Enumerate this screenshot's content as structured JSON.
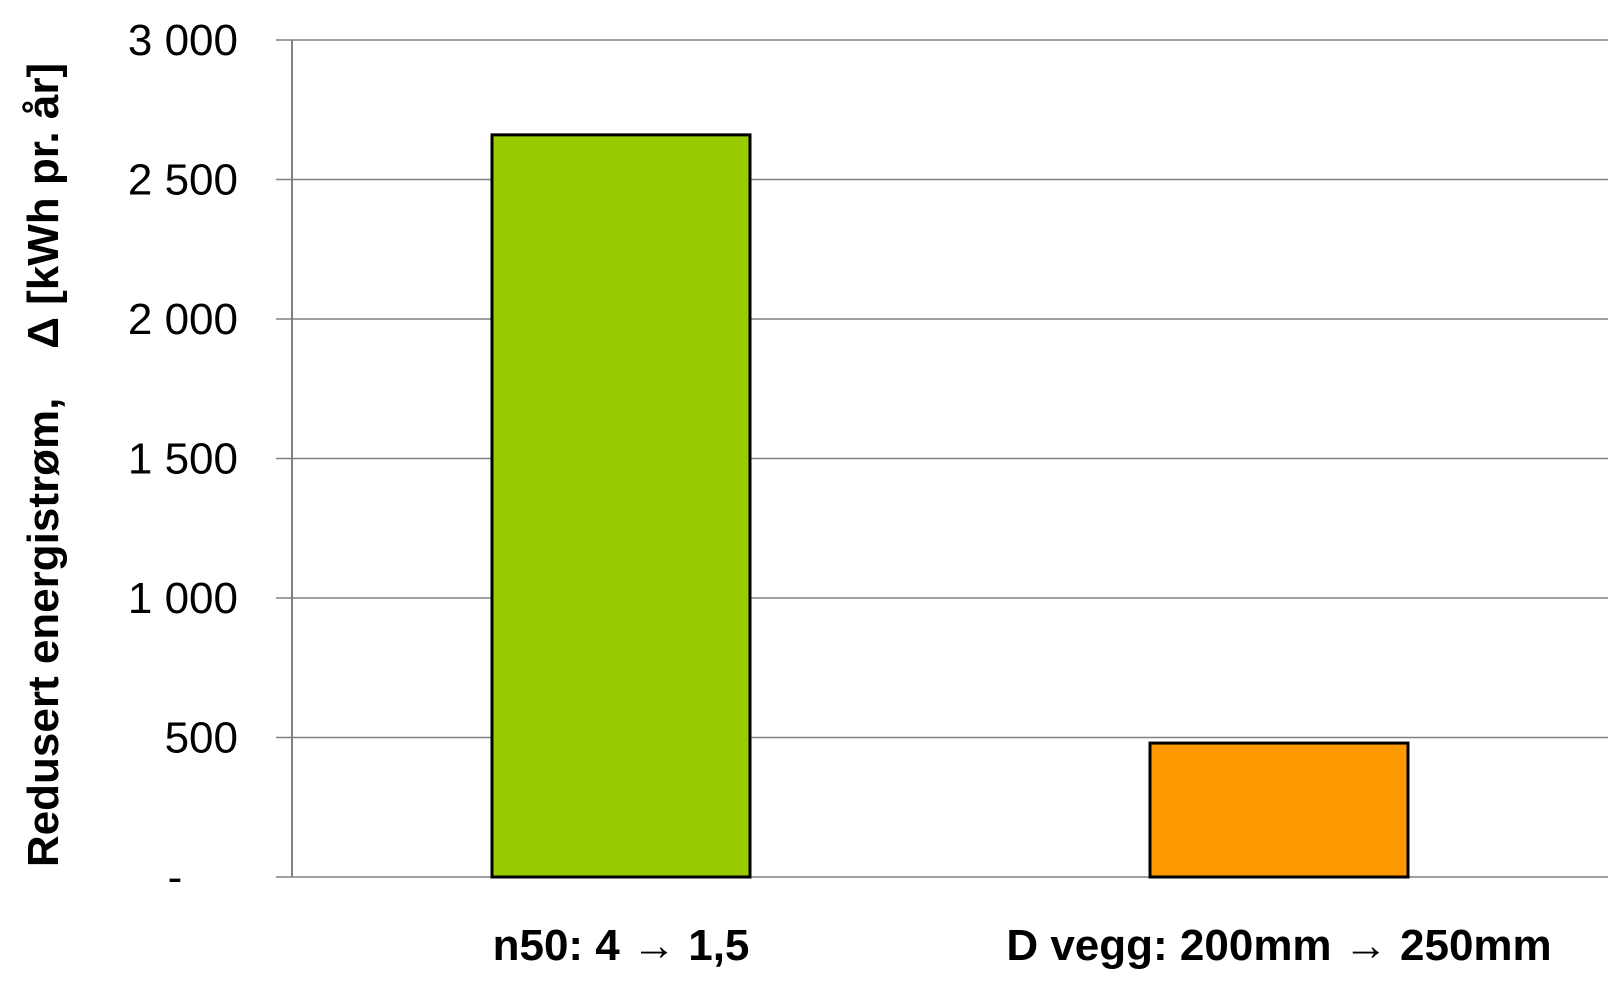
{
  "chart_data": {
    "type": "bar",
    "categories": [
      "n50: 4 → 1,5",
      "D vegg: 200mm → 250mm"
    ],
    "values": [
      2660,
      480
    ],
    "colors": [
      "#99CC00",
      "#FF9900"
    ],
    "ylabel": "Redusert energistrøm,    Δ [kWh pr. år]",
    "ylim": [
      0,
      3000
    ],
    "yticks": [
      0,
      500,
      1000,
      1500,
      2000,
      2500,
      3000
    ],
    "ytick_labels": [
      "-",
      "500",
      "1 000",
      "1 500",
      "2 000",
      "2 500",
      "3 000"
    ],
    "grid": true
  }
}
